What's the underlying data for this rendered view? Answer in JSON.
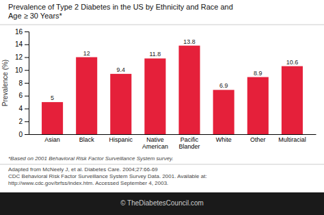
{
  "chart_data": {
    "type": "bar",
    "title": "Prevalence of Type 2 Diabetes in the US by Ethnicity and Race and\nAge ≥ 30 Years*",
    "categories": [
      "Asian",
      "Black",
      "Hispanic",
      "Native\nAmerican",
      "Pacific\nBlander",
      "White",
      "Other",
      "Multiracial"
    ],
    "values": [
      5,
      12,
      9.4,
      11.8,
      13.8,
      6.9,
      8.9,
      10.6
    ],
    "color": "#e5203a",
    "ylabel": "Prevalence (%)",
    "ylim": [
      0,
      16
    ],
    "yticks": [
      0,
      2,
      4,
      6,
      8,
      10,
      12,
      14,
      16
    ],
    "grid": false,
    "data_labels": true,
    "annotations": [
      "*Based on 2001 Behavioral Risk Factor Surveillance System survey.",
      "Adapted from McNeely J, et al. Diabetes Care. 2004;27:66-69",
      "CDC Behavioral Risk Factor Surveillance System Survey Data. 2001. Available at:",
      "http://www.cdc.gov/brfss/index.htm. Accessed September 4, 2003.",
      "© TheDiabetesCouncil.com"
    ]
  }
}
